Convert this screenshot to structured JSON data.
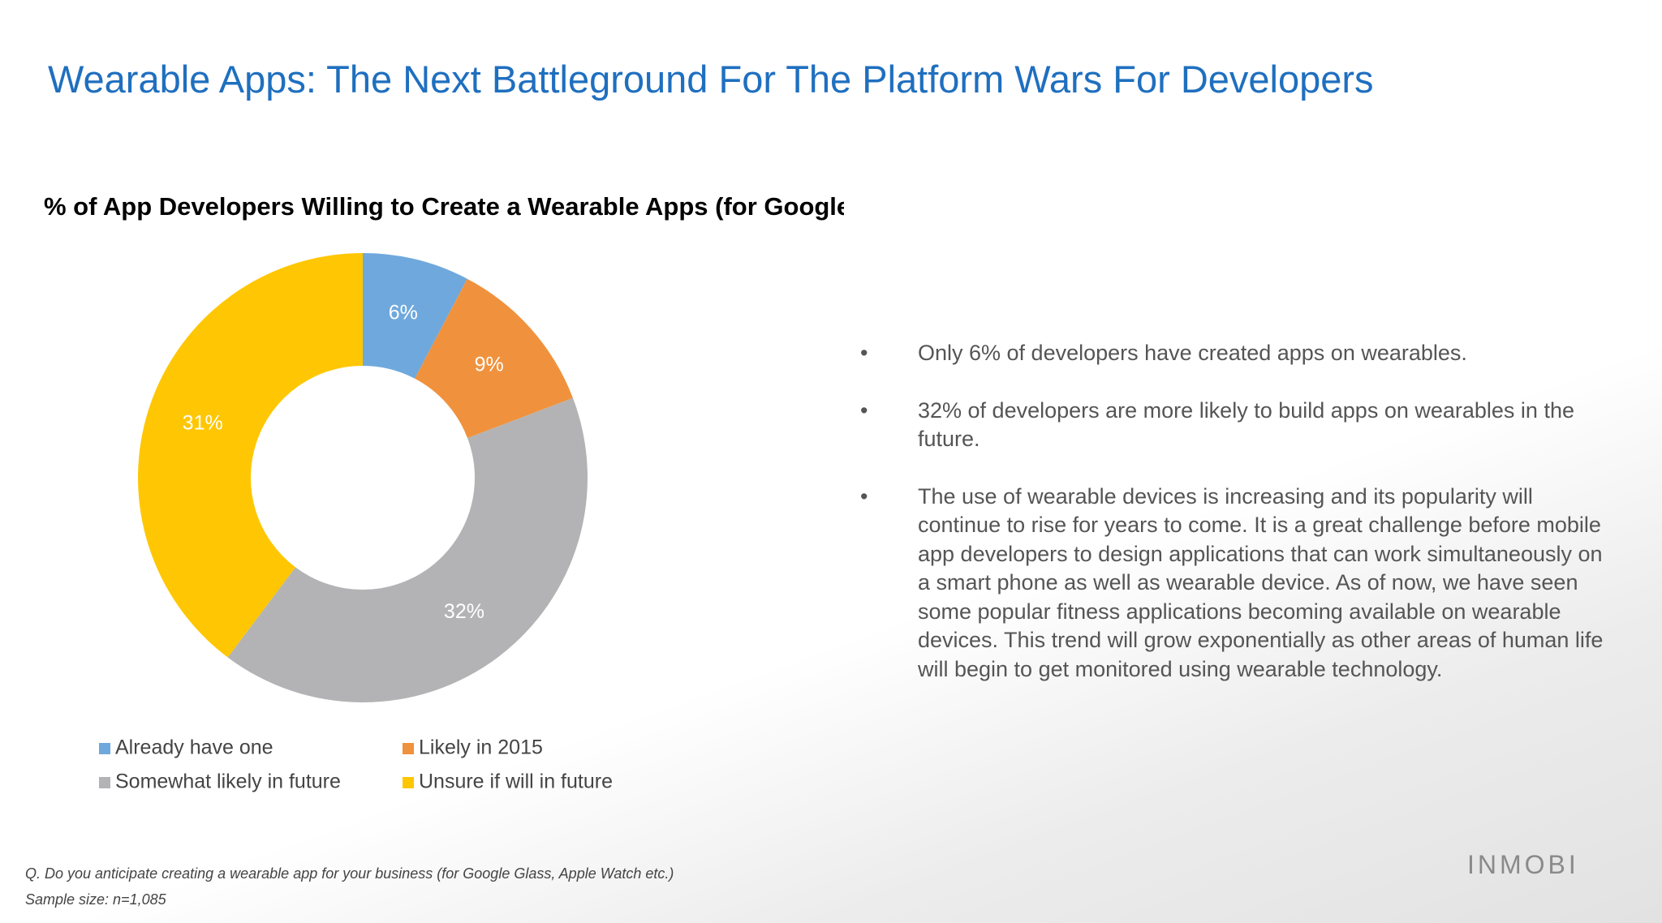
{
  "header": {
    "title": "Wearable Apps: The Next Battleground For The Platform Wars For Developers"
  },
  "chart_data": {
    "type": "donut",
    "title": "% of App Developers Willing to Create a Wearable Apps (for Google Glass, Apple Watch etc.)",
    "categories": [
      "Already have one",
      "Likely in 2015",
      "Somewhat likely in future",
      "Unsure if will in future"
    ],
    "values": [
      6,
      9,
      32,
      31
    ],
    "value_labels": [
      "6%",
      "9%",
      "32%",
      "31%"
    ],
    "colors": [
      "#6fa8dc",
      "#f0923d",
      "#b3b3b5",
      "#ffc703"
    ]
  },
  "bullets": [
    "Only 6% of developers have created apps on wearables.",
    "32% of developers are more likely to build apps on wearables in the future.",
    "The use of wearable devices is increasing and its popularity will continue to rise for years to come. It is a great challenge before mobile app developers to design applications that can work simultaneously on a smart phone as well as wearable device. As of now, we have seen some popular fitness applications becoming available on wearable devices. This trend will grow exponentially as other areas of human life will begin to get monitored using wearable technology."
  ],
  "bullet_symbol": "•",
  "footer": {
    "question": "Q. Do you anticipate creating a wearable app for your business (for Google Glass, Apple Watch etc.)",
    "sample": "Sample size: n=1,085"
  },
  "logo": "INMOBI"
}
